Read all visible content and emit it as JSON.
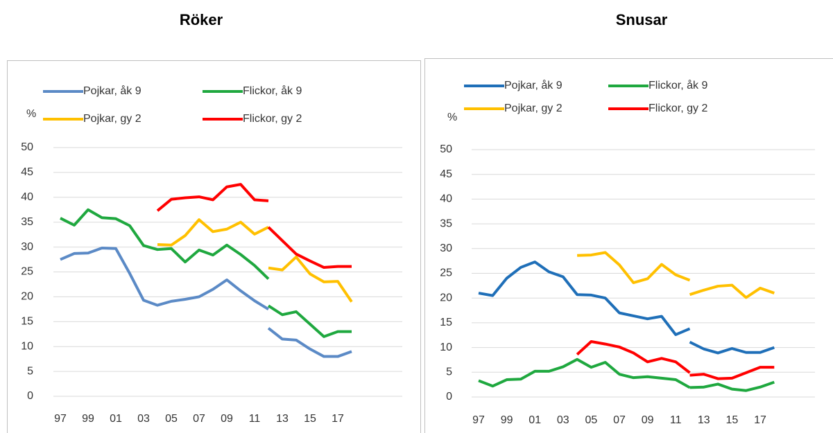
{
  "chart_data": [
    {
      "type": "line",
      "title": "Röker",
      "ylabel": "%",
      "x": [
        1997,
        1998,
        1999,
        2000,
        2001,
        2002,
        2003,
        2004,
        2005,
        2006,
        2007,
        2008,
        2009,
        2010,
        2011,
        2012,
        2012,
        2012,
        2013,
        2014,
        2015,
        2016,
        2017,
        2018
      ],
      "xticks": [
        {
          "value": 1997,
          "label": "97"
        },
        {
          "value": 1999,
          "label": "99"
        },
        {
          "value": 2001,
          "label": "01"
        },
        {
          "value": 2003,
          "label": "03"
        },
        {
          "value": 2005,
          "label": "05"
        },
        {
          "value": 2007,
          "label": "07"
        },
        {
          "value": 2009,
          "label": "09"
        },
        {
          "value": 2011,
          "label": "11"
        },
        {
          "value": 2013,
          "label": "13"
        },
        {
          "value": 2015,
          "label": "15"
        },
        {
          "value": 2017,
          "label": "17"
        }
      ],
      "ylim": [
        0,
        50
      ],
      "yticks": [
        0,
        5,
        10,
        15,
        20,
        25,
        30,
        35,
        40,
        45,
        50
      ],
      "grid": true,
      "series": [
        {
          "name": "Pojkar, åk 9",
          "color": "#5b8ac6",
          "values": [
            27.5,
            28.7,
            28.8,
            29.8,
            29.7,
            24.7,
            19.3,
            18.3,
            19.1,
            19.5,
            20,
            21.5,
            23.4,
            21.2,
            19.2,
            17.5,
            null,
            13.7,
            11.5,
            11.3,
            9.5,
            8,
            8,
            9
          ]
        },
        {
          "name": "Flickor, åk 9",
          "color": "#1fa83f",
          "values": [
            35.8,
            34.4,
            37.5,
            35.9,
            35.7,
            34.3,
            30.3,
            29.5,
            29.7,
            27,
            29.4,
            28.4,
            30.4,
            28.5,
            26.3,
            23.6,
            null,
            18.2,
            16.4,
            17,
            14.5,
            12,
            13,
            13
          ]
        },
        {
          "name": "Pojkar, gy 2",
          "color": "#ffc000",
          "values": [
            null,
            null,
            null,
            null,
            null,
            null,
            null,
            30.5,
            30.4,
            32.3,
            35.5,
            33.1,
            33.6,
            35,
            32.6,
            34,
            null,
            25.8,
            25.4,
            28,
            24.6,
            23,
            23.1,
            19
          ]
        },
        {
          "name": "Flickor, gy 2",
          "color": "#ff0000",
          "values": [
            null,
            null,
            null,
            null,
            null,
            null,
            null,
            37.3,
            39.6,
            39.9,
            40.1,
            39.5,
            42.1,
            42.6,
            39.5,
            39.3,
            null,
            34,
            31.3,
            28.6,
            27.2,
            25.9,
            26.1,
            26.1
          ]
        }
      ]
    },
    {
      "type": "line",
      "title": "Snusar",
      "ylabel": "%",
      "x": [
        1997,
        1998,
        1999,
        2000,
        2001,
        2002,
        2003,
        2004,
        2005,
        2006,
        2007,
        2008,
        2009,
        2010,
        2011,
        2012,
        2012,
        2012,
        2013,
        2014,
        2015,
        2016,
        2017,
        2018
      ],
      "xticks": [
        {
          "value": 1997,
          "label": "97"
        },
        {
          "value": 1999,
          "label": "99"
        },
        {
          "value": 2001,
          "label": "01"
        },
        {
          "value": 2003,
          "label": "03"
        },
        {
          "value": 2005,
          "label": "05"
        },
        {
          "value": 2007,
          "label": "07"
        },
        {
          "value": 2009,
          "label": "09"
        },
        {
          "value": 2011,
          "label": "11"
        },
        {
          "value": 2013,
          "label": "13"
        },
        {
          "value": 2015,
          "label": "15"
        },
        {
          "value": 2017,
          "label": "17"
        }
      ],
      "ylim": [
        0,
        50
      ],
      "yticks": [
        0,
        5,
        10,
        15,
        20,
        25,
        30,
        35,
        40,
        45,
        50
      ],
      "grid": true,
      "series": [
        {
          "name": "Pojkar, åk 9",
          "color": "#1f6fb8",
          "values": [
            21,
            20.5,
            24,
            26.2,
            27.3,
            25.3,
            24.3,
            20.7,
            20.6,
            20,
            17,
            16.4,
            15.8,
            16.3,
            12.6,
            13.8,
            null,
            11.1,
            9.7,
            8.9,
            9.8,
            9,
            9,
            10
          ]
        },
        {
          "name": "Flickor, åk 9",
          "color": "#1fa83f",
          "values": [
            3.3,
            2.2,
            3.5,
            3.6,
            5.2,
            5.2,
            6.1,
            7.6,
            6,
            7,
            4.6,
            3.9,
            4.1,
            3.8,
            3.5,
            1.9,
            null,
            1.9,
            2,
            2.6,
            1.6,
            1.3,
            2,
            3
          ]
        },
        {
          "name": "Pojkar, gy 2",
          "color": "#ffc000",
          "values": [
            null,
            null,
            null,
            null,
            null,
            null,
            null,
            28.6,
            28.7,
            29.2,
            26.7,
            23.1,
            23.9,
            26.8,
            24.7,
            23.6,
            null,
            20.7,
            21.6,
            22.4,
            22.6,
            20.1,
            22,
            21
          ]
        },
        {
          "name": "Flickor, gy 2",
          "color": "#ff0000",
          "values": [
            null,
            null,
            null,
            null,
            null,
            null,
            null,
            8.6,
            11.2,
            10.7,
            10.1,
            8.9,
            7.1,
            7.8,
            7.1,
            4.9,
            null,
            4.4,
            4.6,
            3.7,
            3.8,
            4.9,
            6,
            6
          ]
        }
      ]
    }
  ]
}
